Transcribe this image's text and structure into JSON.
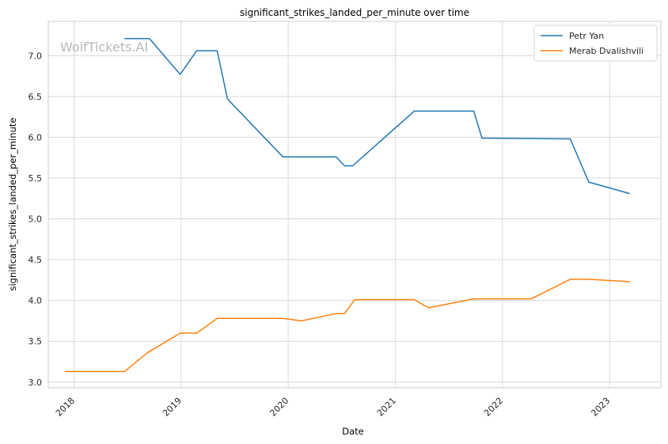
{
  "chart_data": {
    "type": "line",
    "title": "significant_strikes_landed_per_minute over time",
    "xlabel": "Date",
    "ylabel": "significant_strikes_landed_per_minute",
    "watermark": "WolfTickets.AI",
    "x_ticks": [
      "2018",
      "2019",
      "2020",
      "2021",
      "2022",
      "2023"
    ],
    "y_ticks": [
      "3.0",
      "3.5",
      "4.0",
      "4.5",
      "5.0",
      "5.5",
      "6.0",
      "6.5",
      "7.0"
    ],
    "xlim": [
      "2017-10-05",
      "2023-06-25"
    ],
    "ylim": [
      2.93,
      7.42
    ],
    "grid": true,
    "legend_position": "top-right",
    "series": [
      {
        "name": "Petr Yan",
        "color": "#1f77b4",
        "points": [
          [
            "2018-06-22",
            7.21
          ],
          [
            "2018-09-15",
            7.21
          ],
          [
            "2018-12-29",
            6.77
          ],
          [
            "2019-02-23",
            7.06
          ],
          [
            "2019-05-04",
            7.06
          ],
          [
            "2019-06-08",
            6.47
          ],
          [
            "2019-12-14",
            5.76
          ],
          [
            "2020-06-13",
            5.76
          ],
          [
            "2020-07-11",
            5.65
          ],
          [
            "2020-08-08",
            5.65
          ],
          [
            "2021-03-06",
            6.32
          ],
          [
            "2021-09-25",
            6.32
          ],
          [
            "2021-10-23",
            5.99
          ],
          [
            "2022-08-20",
            5.98
          ],
          [
            "2022-10-22",
            5.45
          ],
          [
            "2023-03-11",
            5.31
          ]
        ]
      },
      {
        "name": "Merab Dvalishvili",
        "color": "#ff7f0e",
        "points": [
          [
            "2017-12-01",
            3.13
          ],
          [
            "2018-06-22",
            3.13
          ],
          [
            "2018-09-08",
            3.36
          ],
          [
            "2018-12-29",
            3.6
          ],
          [
            "2019-02-23",
            3.6
          ],
          [
            "2019-05-04",
            3.78
          ],
          [
            "2019-12-14",
            3.78
          ],
          [
            "2020-02-15",
            3.75
          ],
          [
            "2020-06-13",
            3.84
          ],
          [
            "2020-07-11",
            3.84
          ],
          [
            "2020-08-15",
            4.01
          ],
          [
            "2021-03-06",
            4.01
          ],
          [
            "2021-04-24",
            3.91
          ],
          [
            "2021-09-25",
            4.02
          ],
          [
            "2022-04-09",
            4.02
          ],
          [
            "2022-08-20",
            4.26
          ],
          [
            "2022-10-22",
            4.26
          ],
          [
            "2023-03-11",
            4.23
          ]
        ]
      }
    ]
  }
}
